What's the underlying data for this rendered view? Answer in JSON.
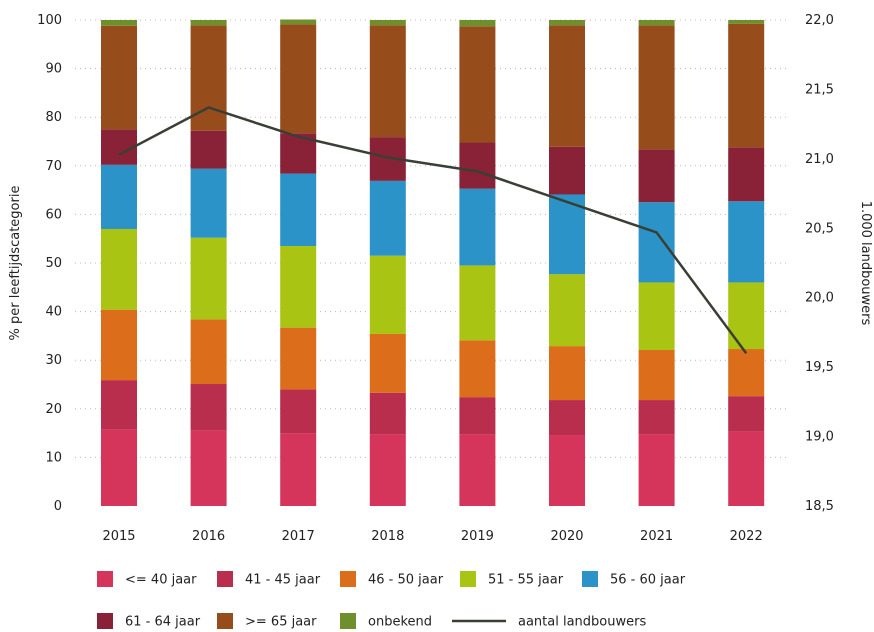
{
  "chart_data": {
    "type": "bar",
    "stacked": true,
    "categories": [
      "2015",
      "2016",
      "2017",
      "2018",
      "2019",
      "2020",
      "2021",
      "2022"
    ],
    "series": [
      {
        "name": "<= 40 jaar",
        "color": "#d5355a",
        "values": [
          15.7,
          15.5,
          15.0,
          14.8,
          14.8,
          14.6,
          14.8,
          15.3
        ]
      },
      {
        "name": "41 - 45 jaar",
        "color": "#b92d4d",
        "values": [
          10.2,
          9.6,
          9.0,
          8.5,
          7.6,
          7.2,
          7.0,
          7.3
        ]
      },
      {
        "name": "46 - 50 jaar",
        "color": "#dc6d1a",
        "values": [
          14.5,
          13.3,
          12.7,
          12.1,
          11.7,
          11.1,
          10.3,
          9.7
        ]
      },
      {
        "name": "51 - 55 jaar",
        "color": "#a9c413",
        "values": [
          16.6,
          16.8,
          16.8,
          16.1,
          15.4,
          14.8,
          13.9,
          13.7
        ]
      },
      {
        "name": "56 - 60 jaar",
        "color": "#2b93c7",
        "values": [
          13.2,
          14.2,
          14.9,
          15.4,
          15.8,
          16.4,
          16.5,
          16.7
        ]
      },
      {
        "name": "61 - 64 jaar",
        "color": "#8a2237",
        "values": [
          7.3,
          7.8,
          8.3,
          9.0,
          9.5,
          9.8,
          10.9,
          11.1
        ]
      },
      {
        "name": ">= 65 jaar",
        "color": "#964d1b",
        "values": [
          21.3,
          21.7,
          22.4,
          23.0,
          23.9,
          25.0,
          25.5,
          25.4
        ]
      },
      {
        "name": "onbekend",
        "color": "#6e8f2c",
        "values": [
          1.2,
          1.1,
          1.0,
          1.1,
          1.3,
          1.1,
          1.1,
          0.8
        ]
      }
    ],
    "line_series": {
      "name": "aantal landbouwers",
      "color": "#3a3f36",
      "axis": "right",
      "values": [
        21.03,
        21.37,
        21.16,
        21.01,
        20.91,
        20.69,
        20.47,
        19.6
      ]
    },
    "ylabel": "% per leeftijdscategorie",
    "ylabel_right": "1.000 landbouwers",
    "ylim": [
      0,
      100
    ],
    "ylim_right": [
      18.5,
      22.0
    ],
    "yticks": [
      "0",
      "10",
      "20",
      "30",
      "40",
      "50",
      "60",
      "70",
      "80",
      "90",
      "100"
    ],
    "yticks_right": [
      "18,5",
      "19,0",
      "19,5",
      "20,0",
      "20,5",
      "21,0",
      "21,5",
      "22,0"
    ],
    "grid": true,
    "legend_position": "bottom"
  }
}
